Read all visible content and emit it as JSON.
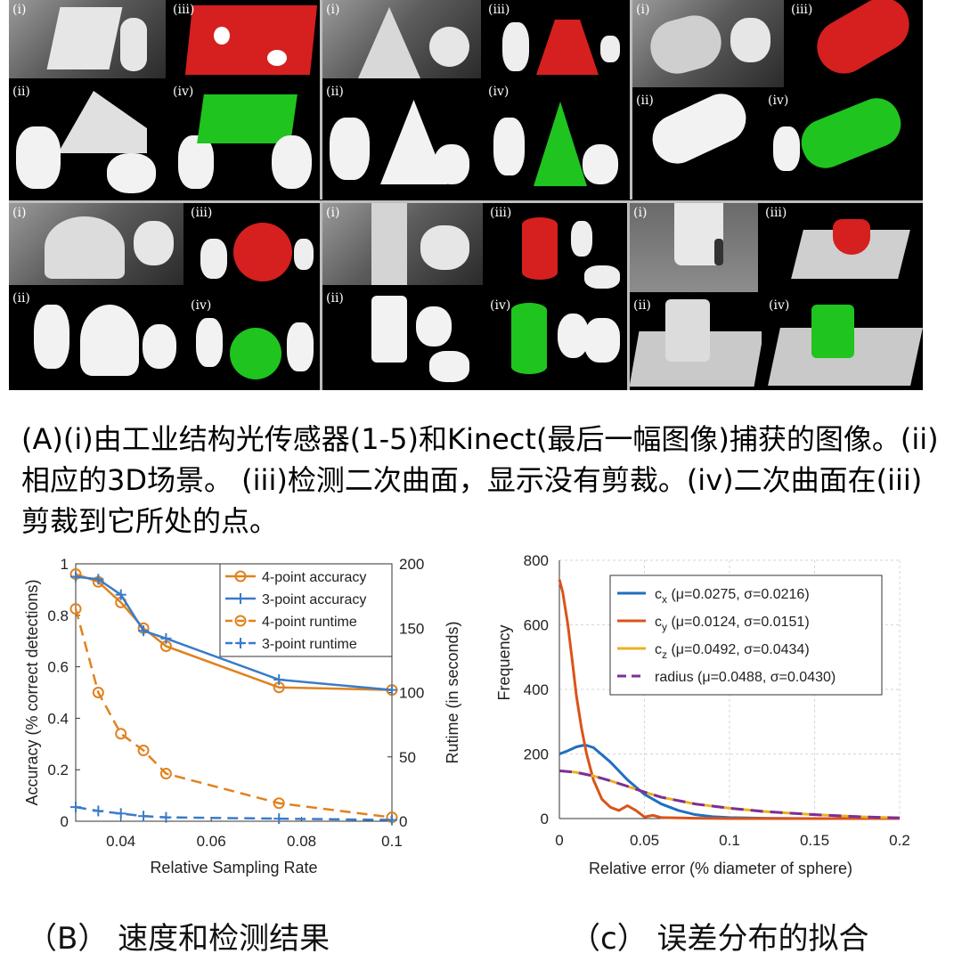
{
  "figure": {
    "panel_labels": [
      "(i)",
      "(iii)",
      "(ii)",
      "(iv)"
    ],
    "caption_a": "(A)(i)由工业结构光传感器(1-5)和Kinect(最后一幅图像)捕获的图像。(ii)相应的3D场景。 (iii)检测二次曲面，显示没有剪裁。(iv)二次曲面在(iii)剪裁到它所处的点。",
    "caption_b": "（B） 速度和检测结果",
    "caption_c": "（c） 误差分布的拟合",
    "colors": {
      "red_fit": "#d61f1f",
      "green_fit": "#1fc41f",
      "blue": "#3a7bc8",
      "orange": "#e0821e"
    }
  },
  "chart_data": [
    {
      "type": "line",
      "xlabel": "Relative Sampling Rate",
      "ylabel": "Accuracy (% correct detections)",
      "y2label": "Rutime (in seconds)",
      "xlim": [
        0.03,
        0.1
      ],
      "ylim": [
        0,
        1
      ],
      "y2lim": [
        0,
        200
      ],
      "x_ticks": [
        "0.04",
        "0.06",
        "0.08",
        "0.1"
      ],
      "y_ticks": [
        "0",
        "0.2",
        "0.4",
        "0.6",
        "0.8",
        "1"
      ],
      "y2_ticks": [
        "0",
        "50",
        "100",
        "150",
        "200"
      ],
      "legend_position": "top-right",
      "grid": false,
      "x": [
        0.03,
        0.035,
        0.04,
        0.045,
        0.05,
        0.075,
        0.1
      ],
      "series": [
        {
          "name": "4-point accuracy",
          "axis": "left",
          "color": "#e0821e",
          "style": "solid",
          "marker": "circle",
          "values": [
            0.96,
            0.93,
            0.85,
            0.75,
            0.68,
            0.52,
            0.51
          ]
        },
        {
          "name": "3-point accuracy",
          "axis": "left",
          "color": "#3a7bc8",
          "style": "solid",
          "marker": "plus",
          "values": [
            0.95,
            0.94,
            0.88,
            0.74,
            0.71,
            0.55,
            0.51
          ]
        },
        {
          "name": "4-point runtime",
          "axis": "right",
          "color": "#e0821e",
          "style": "dashed",
          "marker": "circle",
          "values": [
            165,
            100,
            68,
            55,
            37,
            14,
            3
          ]
        },
        {
          "name": "3-point runtime",
          "axis": "right",
          "color": "#3a7bc8",
          "style": "dashed",
          "marker": "plus",
          "values": [
            11,
            8,
            6,
            4,
            3,
            2,
            1
          ]
        }
      ]
    },
    {
      "type": "line",
      "xlabel": "Relative error (% diameter of sphere)",
      "ylabel": "Frequency",
      "xlim": [
        0,
        0.2
      ],
      "ylim": [
        0,
        800
      ],
      "x_ticks": [
        "0",
        "0.05",
        "0.1",
        "0.15",
        "0.2"
      ],
      "y_ticks": [
        "0",
        "200",
        "400",
        "600",
        "800"
      ],
      "legend_position": "top-right",
      "grid": true,
      "series": [
        {
          "name": "c",
          "sub": "x",
          "stats": " (μ=0.0275, σ=0.0216)",
          "color": "#1f6fc0",
          "style": "solid",
          "x": [
            0,
            0.005,
            0.01,
            0.015,
            0.02,
            0.03,
            0.04,
            0.05,
            0.06,
            0.07,
            0.08,
            0.09,
            0.1,
            0.12,
            0.15,
            0.2
          ],
          "y": [
            200,
            210,
            222,
            228,
            220,
            175,
            120,
            75,
            45,
            25,
            12,
            6,
            3,
            1,
            0,
            0
          ]
        },
        {
          "name": "c",
          "sub": "y",
          "stats": " (μ=0.0124, σ=0.0151)",
          "color": "#d9541a",
          "style": "solid",
          "x": [
            0,
            0.002,
            0.005,
            0.008,
            0.01,
            0.013,
            0.016,
            0.02,
            0.025,
            0.03,
            0.035,
            0.04,
            0.045,
            0.05,
            0.055,
            0.06,
            0.08,
            0.1,
            0.2
          ],
          "y": [
            740,
            700,
            600,
            470,
            380,
            280,
            200,
            120,
            60,
            35,
            25,
            40,
            25,
            5,
            10,
            3,
            1,
            0,
            0
          ]
        },
        {
          "name": "c",
          "sub": "z",
          "stats": " (μ=0.0492, σ=0.0434)",
          "color": "#ecb11f",
          "style": "solid",
          "x": [
            0,
            0.01,
            0.02,
            0.03,
            0.04,
            0.05,
            0.06,
            0.08,
            0.1,
            0.12,
            0.15,
            0.18,
            0.2
          ],
          "y": [
            148,
            143,
            132,
            117,
            100,
            82,
            66,
            45,
            32,
            22,
            12,
            5,
            2
          ]
        },
        {
          "name": "radius",
          "sub": "",
          "stats": " (μ=0.0488, σ=0.0430)",
          "color": "#7b2f9b",
          "style": "dashed",
          "x": [
            0,
            0.01,
            0.02,
            0.03,
            0.04,
            0.05,
            0.06,
            0.08,
            0.1,
            0.12,
            0.15,
            0.18,
            0.2
          ],
          "y": [
            148,
            143,
            132,
            117,
            100,
            82,
            66,
            45,
            32,
            22,
            12,
            5,
            2
          ]
        }
      ]
    }
  ]
}
